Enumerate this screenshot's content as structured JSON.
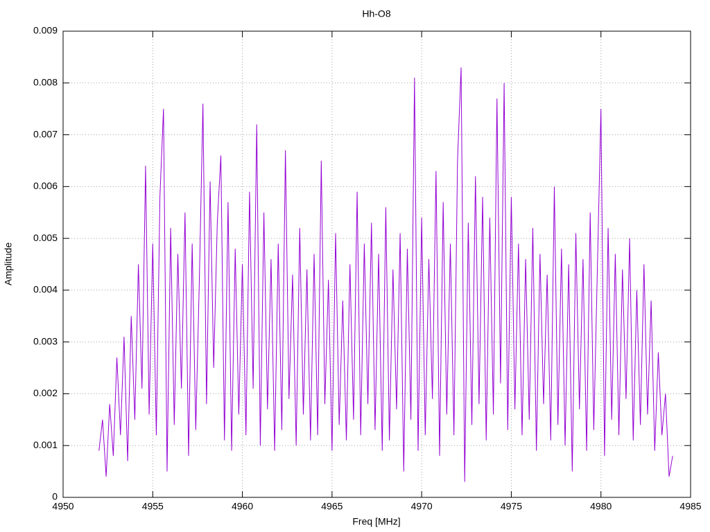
{
  "chart_data": {
    "type": "line",
    "title": "Hh-O8",
    "x_label": "Freq [MHz]",
    "y_label": "Amplitude",
    "x": [
      4952,
      4952.2,
      4952.4,
      4952.6,
      4952.8,
      4953,
      4953.2,
      4953.4,
      4953.6,
      4953.8,
      4954,
      4954.2,
      4954.4,
      4954.6,
      4954.8,
      4955,
      4955.2,
      4955.4,
      4955.6,
      4955.8,
      4956,
      4956.2,
      4956.4,
      4956.6,
      4956.8,
      4957,
      4957.2,
      4957.4,
      4957.6,
      4957.8,
      4958,
      4958.2,
      4958.4,
      4958.6,
      4958.8,
      4959,
      4959.2,
      4959.4,
      4959.6,
      4959.8,
      4960,
      4960.2,
      4960.4,
      4960.6,
      4960.8,
      4961,
      4961.2,
      4961.4,
      4961.6,
      4961.8,
      4962,
      4962.2,
      4962.4,
      4962.6,
      4962.8,
      4963,
      4963.2,
      4963.4,
      4963.6,
      4963.8,
      4964,
      4964.2,
      4964.4,
      4964.6,
      4964.8,
      4965,
      4965.2,
      4965.4,
      4965.6,
      4965.8,
      4966,
      4966.2,
      4966.4,
      4966.6,
      4966.8,
      4967,
      4967.2,
      4967.4,
      4967.6,
      4967.8,
      4968,
      4968.2,
      4968.4,
      4968.6,
      4968.8,
      4969,
      4969.2,
      4969.4,
      4969.6,
      4969.8,
      4970,
      4970.2,
      4970.4,
      4970.6,
      4970.8,
      4971,
      4971.2,
      4971.4,
      4971.6,
      4971.8,
      4972,
      4972.2,
      4972.4,
      4972.6,
      4972.8,
      4973,
      4973.2,
      4973.4,
      4973.6,
      4973.8,
      4974,
      4974.2,
      4974.4,
      4974.6,
      4974.8,
      4975,
      4975.2,
      4975.4,
      4975.6,
      4975.8,
      4976,
      4976.2,
      4976.4,
      4976.6,
      4976.8,
      4977,
      4977.2,
      4977.4,
      4977.6,
      4977.8,
      4978,
      4978.2,
      4978.4,
      4978.6,
      4978.8,
      4979,
      4979.2,
      4979.4,
      4979.6,
      4979.8,
      4980,
      4980.2,
      4980.4,
      4980.6,
      4980.8,
      4981,
      4981.2,
      4981.4,
      4981.6,
      4981.8,
      4982,
      4982.2,
      4982.4,
      4982.6,
      4982.8,
      4983,
      4983.2,
      4983.4,
      4983.6,
      4983.8,
      4984
    ],
    "series": [
      {
        "color": "#9400d3",
        "values": [
          0.0009,
          0.0015,
          0.0004,
          0.0018,
          0.0008,
          0.0027,
          0.0012,
          0.0031,
          0.0007,
          0.0035,
          0.0015,
          0.0045,
          0.0021,
          0.0064,
          0.0016,
          0.0049,
          0.0012,
          0.0058,
          0.0075,
          0.0005,
          0.0052,
          0.0014,
          0.0047,
          0.0021,
          0.0055,
          0.0008,
          0.0049,
          0.0013,
          0.0042,
          0.0076,
          0.0018,
          0.0061,
          0.0025,
          0.0053,
          0.0066,
          0.0011,
          0.0057,
          0.0009,
          0.0048,
          0.0016,
          0.0045,
          0.0012,
          0.0059,
          0.0021,
          0.0072,
          0.001,
          0.0055,
          0.0017,
          0.0046,
          0.0009,
          0.0049,
          0.0013,
          0.0067,
          0.0019,
          0.0043,
          0.001,
          0.0052,
          0.0016,
          0.0044,
          0.0011,
          0.0047,
          0.0012,
          0.0065,
          0.0018,
          0.0042,
          0.0009,
          0.0051,
          0.0014,
          0.0038,
          0.0011,
          0.0045,
          0.0015,
          0.0059,
          0.0012,
          0.0049,
          0.0018,
          0.0053,
          0.0013,
          0.0047,
          0.0009,
          0.0056,
          0.0011,
          0.0044,
          0.0017,
          0.0051,
          0.0005,
          0.0048,
          0.0015,
          0.0081,
          0.0009,
          0.0054,
          0.0012,
          0.0046,
          0.0019,
          0.0063,
          0.0008,
          0.0057,
          0.0016,
          0.0049,
          0.0012,
          0.0065,
          0.0083,
          0.0003,
          0.0053,
          0.0014,
          0.0062,
          0.0018,
          0.0058,
          0.0011,
          0.0054,
          0.0016,
          0.0077,
          0.0022,
          0.008,
          0.0013,
          0.0058,
          0.0017,
          0.0049,
          0.0012,
          0.0046,
          0.0015,
          0.0052,
          0.0009,
          0.0047,
          0.0018,
          0.0043,
          0.0011,
          0.006,
          0.0014,
          0.0048,
          0.001,
          0.0045,
          0.0005,
          0.0051,
          0.0017,
          0.0046,
          0.0009,
          0.0055,
          0.0013,
          0.0044,
          0.0075,
          0.0008,
          0.0052,
          0.0015,
          0.0047,
          0.0012,
          0.0044,
          0.0019,
          0.005,
          0.0011,
          0.004,
          0.0014,
          0.0045,
          0.0016,
          0.0038,
          0.0009,
          0.0028,
          0.0012,
          0.002,
          0.0004,
          0.0008
        ]
      }
    ],
    "xlim": [
      4950,
      4985
    ],
    "xticks": [
      4950,
      4955,
      4960,
      4965,
      4970,
      4975,
      4980,
      4985
    ],
    "ylim": [
      0,
      0.009
    ],
    "yticks": [
      0,
      0.001,
      0.002,
      0.003,
      0.004,
      0.005,
      0.006,
      0.007,
      0.008,
      0.009
    ],
    "grid": true
  }
}
